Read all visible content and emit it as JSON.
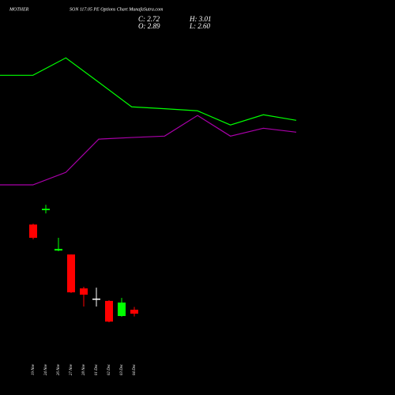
{
  "chart_data": [
    {
      "type": "line",
      "categories": [
        null,
        null,
        null,
        null,
        null,
        null,
        null,
        null,
        null,
        null
      ],
      "series": [
        {
          "color": "#00ff00",
          "values": [
            12.99,
            12.99,
            13.74,
            12.69,
            11.63,
            11.55,
            11.46,
            10.85,
            11.29,
            11.05
          ]
        },
        {
          "color": "#aa00aa",
          "values": [
            8.27,
            8.27,
            8.81,
            10.24,
            10.31,
            10.37,
            11.26,
            10.37,
            10.71,
            10.54
          ]
        }
      ],
      "ylim": [
        0,
        16.2
      ]
    },
    {
      "type": "candlestick",
      "title": "MOTHER",
      "subtitle": "SON 117.05 PE Options Chart MunafaSutra.com",
      "ohlc_labels": [
        "C: 2.72",
        "H: 3.01",
        "O: 2.89",
        "L: 2.60"
      ],
      "categories": [
        "19 Nov",
        "24 Nov",
        "26 Nov",
        "27 Nov",
        "28 Nov",
        "01 Dec",
        "02 Dec",
        "03 Dec",
        "04 Dec"
      ],
      "open": [
        6.56,
        7.18,
        5.44,
        5.27,
        3.81,
        3.37,
        3.27,
        2.62,
        2.89
      ],
      "high": [
        6.6,
        7.41,
        5.99,
        5.27,
        3.88,
        3.84,
        3.3,
        3.4,
        3.01
      ],
      "low": [
        5.92,
        7.04,
        5.41,
        3.61,
        3.03,
        3.03,
        2.35,
        2.59,
        2.6
      ],
      "close": [
        5.99,
        7.24,
        5.51,
        3.64,
        3.54,
        3.37,
        2.38,
        3.2,
        2.72
      ],
      "up_color": "#00ff00",
      "down_color": "#ff0000",
      "flat_color": "#ffffff",
      "ylim": [
        0,
        16.2
      ]
    }
  ]
}
